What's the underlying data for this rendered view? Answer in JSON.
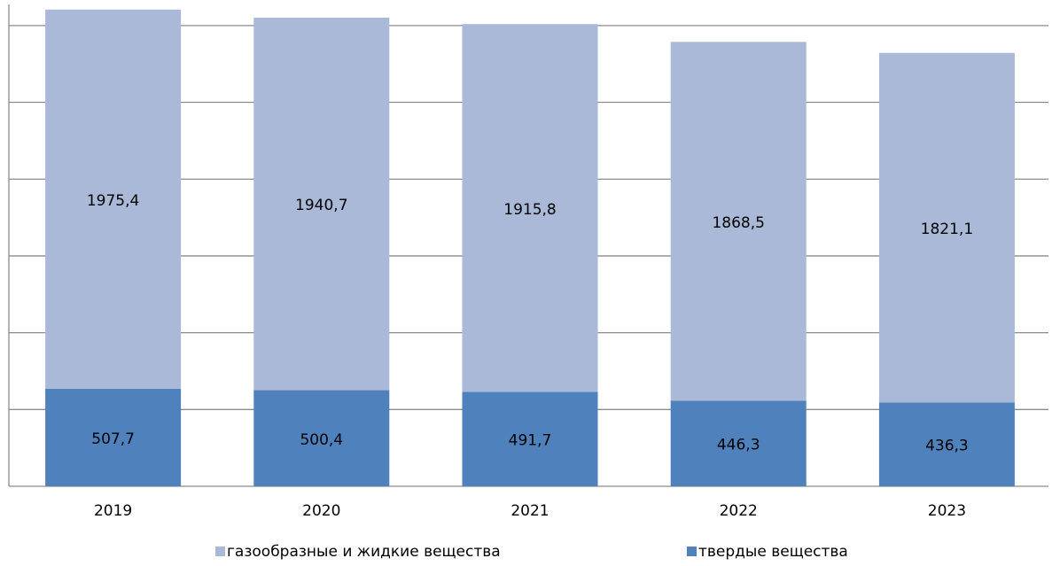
{
  "chart_data": {
    "type": "stacked_bar",
    "categories": [
      "2019",
      "2020",
      "2021",
      "2022",
      "2023"
    ],
    "series": [
      {
        "name": "твердые вещества",
        "color": "#4f81bd",
        "values": [
          507.7,
          500.4,
          491.7,
          446.3,
          436.3
        ],
        "value_labels": [
          "507,7",
          "500,4",
          "491,7",
          "446,3",
          "436,3"
        ]
      },
      {
        "name": "газообразные и жидкие вещества",
        "color": "#a9b9d7",
        "values": [
          1975.4,
          1940.7,
          1915.8,
          1868.5,
          1821.1
        ],
        "value_labels": [
          "1975,4",
          "1940,7",
          "1915,8",
          "1868,5",
          "1821,1"
        ]
      }
    ],
    "legend_order": [
      1,
      0
    ],
    "ylim": [
      0,
      2510
    ],
    "yticks": [
      0,
      400,
      800,
      1200,
      1600,
      2000,
      2400
    ],
    "grid": true
  }
}
